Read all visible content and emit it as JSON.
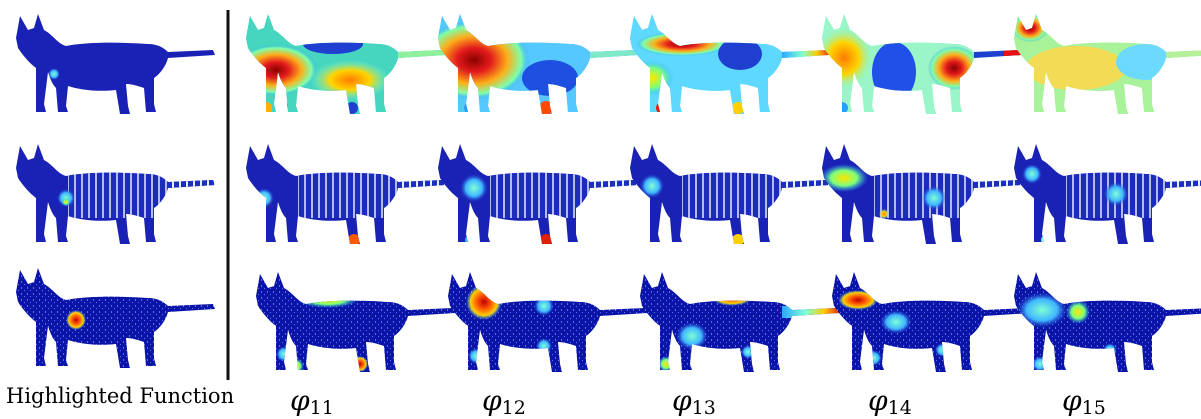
{
  "figure": {
    "left_caption": "Highlighted Function",
    "columns": [
      {
        "symbol": "φ",
        "index": "11"
      },
      {
        "symbol": "φ",
        "index": "12"
      },
      {
        "symbol": "φ",
        "index": "13"
      },
      {
        "symbol": "φ",
        "index": "14"
      },
      {
        "symbol": "φ",
        "index": "15"
      }
    ],
    "colormap": "jet",
    "rows": [
      "smooth-mesh",
      "striped-mesh",
      "point-cloud"
    ]
  }
}
